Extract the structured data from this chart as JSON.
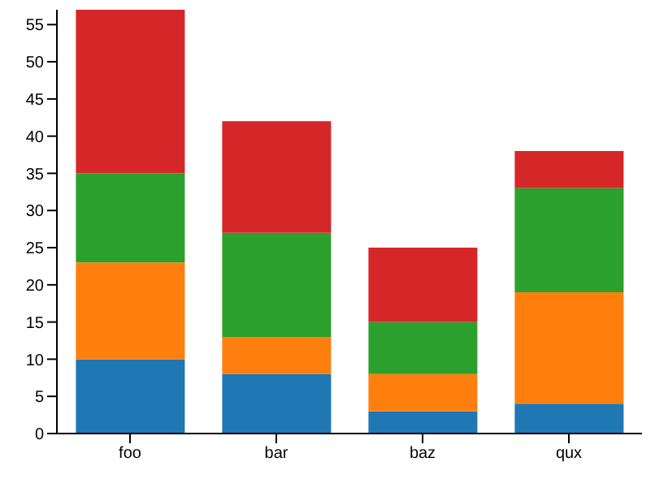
{
  "chart_data": {
    "type": "bar",
    "stacked": true,
    "categories": [
      "foo",
      "bar",
      "baz",
      "qux"
    ],
    "series": [
      {
        "color": "#1f77b4",
        "values": [
          10,
          8,
          3,
          4
        ]
      },
      {
        "color": "#ff7f0e",
        "values": [
          13,
          5,
          5,
          15
        ]
      },
      {
        "color": "#2ca02c",
        "values": [
          12,
          14,
          7,
          14
        ]
      },
      {
        "color": "#d62728",
        "values": [
          22,
          15,
          10,
          5
        ]
      }
    ],
    "ylim": [
      0,
      57
    ],
    "yticks": [
      0,
      5,
      10,
      15,
      20,
      25,
      30,
      35,
      40,
      45,
      50,
      55
    ],
    "grid": false,
    "legend": false
  }
}
